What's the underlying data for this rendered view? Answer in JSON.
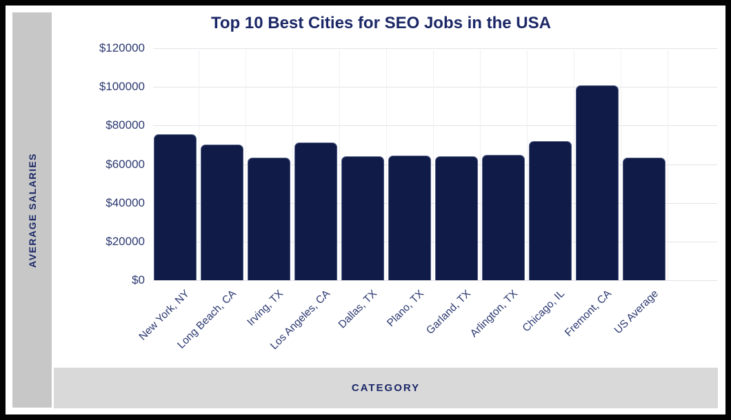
{
  "sidebar": {
    "label": "AVERAGE SALARIES"
  },
  "footer": {
    "label": "CATEGORY"
  },
  "chart_data": {
    "type": "bar",
    "title": "Top 10 Best Cities for SEO Jobs in the USA",
    "categories": [
      "New York, NY",
      "Long Beach, CA",
      "Irving, TX",
      "Los Angeles, CA",
      "Dallas, TX",
      "Plano, TX",
      "Garland, TX",
      "Arlington, TX",
      "Chicago, IL",
      "Fremont, CA",
      "US Average"
    ],
    "values": [
      75600,
      70000,
      63500,
      71100,
      64100,
      64300,
      64100,
      64700,
      72000,
      100900,
      63300
    ],
    "xlabel": "CATEGORY",
    "ylabel": "AVERAGE SALARIES",
    "ylim": [
      0,
      120000
    ],
    "y_ticks": [
      0,
      20000,
      40000,
      60000,
      80000,
      100000,
      120000
    ],
    "y_tick_prefix": "$",
    "grid": true,
    "legend_position": "none",
    "colors": {
      "bar": "#101c47",
      "title_text": "#1b2766",
      "axis_text": "#2b3870",
      "gridline": "#e3e3e9",
      "sidebar_bg": "#c7c7c7",
      "footer_bg": "#d9d9d9",
      "frame_border": "#030303",
      "background": "#ffffff"
    }
  }
}
